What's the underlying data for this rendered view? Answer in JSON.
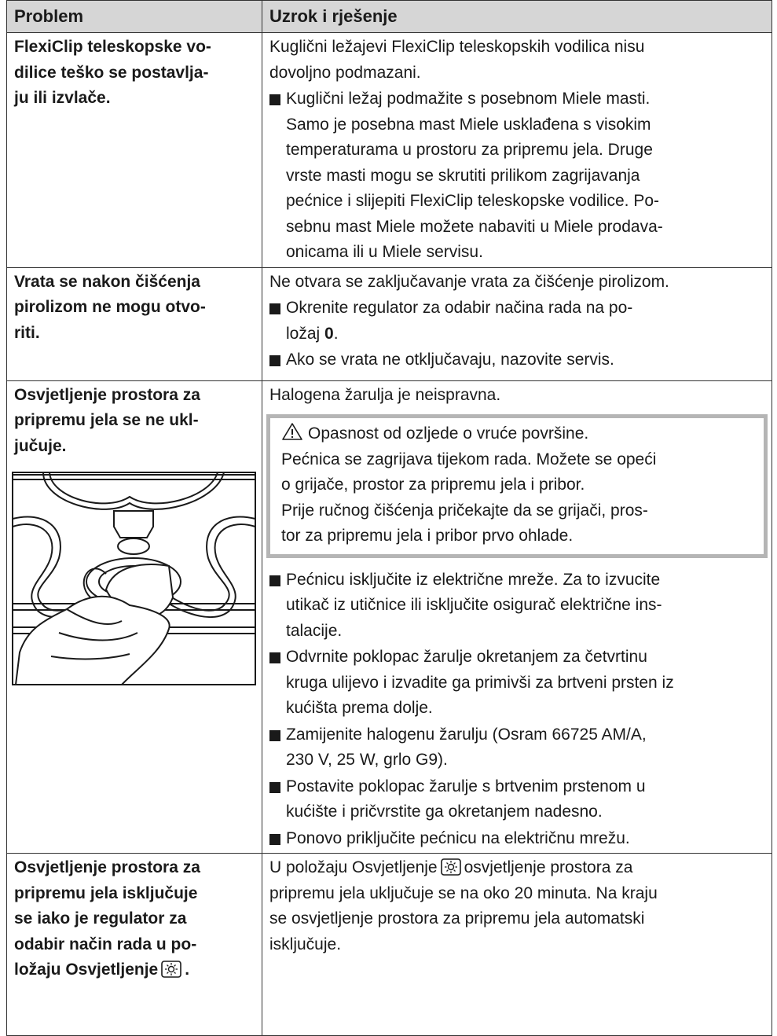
{
  "header": {
    "problem": "Problem",
    "solution": "Uzrok i rješenje"
  },
  "rows": [
    {
      "problem": [
        "FlexiClip teleskopske vo-",
        "dilice teško se postavlja-",
        "ju ili izvlače."
      ],
      "intro": [
        "Kuglični ležajevi FlexiClip teleskopskih vodilica nisu",
        "dovoljno podmazani."
      ],
      "bullets": [
        [
          "Kuglični ležaj podmažite s posebnom Miele masti.",
          "Samo je posebna mast Miele usklađena s visokim",
          "temperaturama u prostoru za pripremu jela. Druge",
          "vrste masti mogu se skrutiti prilikom zagrijavanja",
          "pećnice i slijepiti FlexiClip teleskopske vodilice. Po-",
          "sebnu mast Miele možete nabaviti u Miele prodava-",
          "onicama ili u Miele servisu."
        ]
      ]
    },
    {
      "problem": [
        "Vrata se nakon čišćenja",
        "pirolizom ne mogu otvo-",
        "riti."
      ],
      "intro": [
        "Ne otvara se zaključavanje vrata za čišćenje pirolizom."
      ],
      "bullets": [
        [
          "Okrenite regulator za odabir načina rada na po-",
          {
            "text": "ložaj ",
            "bold": "0",
            "after": "."
          }
        ],
        [
          "Ako se vrata ne otključavaju, nazovite servis."
        ]
      ]
    },
    {
      "problem": [
        "Osvjetljenje prostora za",
        "pripremu jela se ne ukl-",
        "jučuje."
      ],
      "intro": [
        "Halogena žarulja je neispravna."
      ],
      "warning": {
        "title": "Opasnost od ozljede o vruće površine.",
        "lines": [
          "Pećnica se zagrijava tijekom rada. Možete se opeći",
          "o grijače, prostor za pripremu jela i pribor.",
          "Prije ručnog čišćenja pričekajte da se grijači, pros-",
          "tor za pripremu jela i pribor prvo ohlade."
        ]
      },
      "bullets": [
        [
          "Pećnicu isključite iz električne mreže. Za to izvucite",
          "utikač iz utičnice ili isključite osigurač električne ins-",
          "talacije."
        ],
        [
          "Odvrnite poklopac žarulje okretanjem za četvrtinu",
          "kruga ulijevo i izvadite ga primivši za brtveni prsten iz",
          "kućišta prema dolje."
        ],
        [
          "Zamijenite halogenu žarulju (Osram 66725 AM/A,",
          "230 V, 25 W, grlo G9)."
        ],
        [
          "Postavite poklopac žarulje s brtvenim prstenom u",
          "kućište i pričvrstite ga okretanjem nadesno."
        ],
        [
          "Ponovo priključite pećnicu na električnu mrežu."
        ]
      ]
    },
    {
      "problem": [
        "Osvjetljenje prostora za",
        "pripremu jela isključuje",
        "se iako je regulator za",
        "odabir način rada u po-",
        {
          "before": "ložaju Osvjetljenje",
          "after": "."
        }
      ],
      "intro": [
        {
          "before": "U položaju Osvjetljenje",
          "after": "osvjetljenje prostora za"
        },
        "pripremu jela uključuje se na oko 20 minuta. Na kraju",
        "se osvjetljenje prostora za pripremu jela automatski",
        "isključuje."
      ],
      "bullets": []
    }
  ]
}
